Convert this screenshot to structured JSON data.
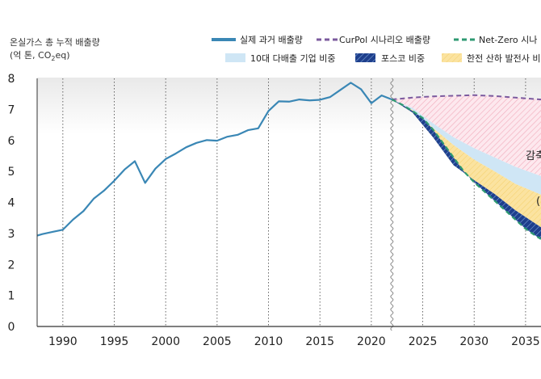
{
  "chart_data": {
    "type": "line",
    "ylabel_line1": "온실가스 총 누적 배출량",
    "ylabel_line2_pre": "(억 톤, CO",
    "ylabel_line2_sub": "2",
    "ylabel_line2_post": "eq)",
    "xlim": [
      1987.5,
      2036.5
    ],
    "ylim": [
      0,
      8
    ],
    "x_ticks": [
      1990,
      1995,
      2000,
      2005,
      2010,
      2015,
      2020,
      2025,
      2030,
      2035
    ],
    "x_tick_labels": [
      "1990",
      "1995",
      "2000",
      "2005",
      "2010",
      "2015",
      "2020",
      "2025",
      "2030",
      "2035"
    ],
    "y_ticks": [
      0,
      1,
      2,
      3,
      4,
      5,
      6,
      7,
      8
    ],
    "y_tick_labels": [
      "0",
      "1",
      "2",
      "3",
      "4",
      "5",
      "6",
      "7",
      "8"
    ],
    "legend": {
      "actual": "실제 과거 배출량",
      "curpol": "CurPol 시나리오 배출량",
      "netzero": "Net-Zero 시나",
      "top10": "10대 다배출 기업 비중",
      "posco": "포스코 비중",
      "kepco": "한전 산하 발전사 비"
    },
    "annotations": {
      "reduction_partial": "감축",
      "share_partial": "("
    },
    "series": [
      {
        "key": "actual",
        "x": [
          1987.5,
          1988,
          1989,
          1990,
          1991,
          1992,
          1993,
          1994,
          1995,
          1996,
          1997,
          1998,
          1999,
          2000,
          2001,
          2002,
          2003,
          2004,
          2005,
          2006,
          2007,
          2008,
          2009,
          2010,
          2011,
          2012,
          2013,
          2014,
          2015,
          2016,
          2017,
          2018,
          2019,
          2020,
          2021,
          2022
        ],
        "y": [
          2.93,
          2.98,
          3.05,
          3.12,
          3.45,
          3.72,
          4.12,
          4.38,
          4.7,
          5.06,
          5.33,
          4.63,
          5.09,
          5.4,
          5.58,
          5.78,
          5.92,
          6.01,
          5.99,
          6.12,
          6.18,
          6.33,
          6.39,
          6.95,
          7.26,
          7.25,
          7.32,
          7.29,
          7.31,
          7.4,
          7.63,
          7.86,
          7.65,
          7.2,
          7.45,
          7.32
        ]
      },
      {
        "key": "curpol",
        "x": [
          2022,
          2024,
          2026,
          2028,
          2030,
          2032,
          2034,
          2036.5
        ],
        "y": [
          7.32,
          7.38,
          7.42,
          7.44,
          7.46,
          7.43,
          7.38,
          7.32
        ]
      },
      {
        "key": "netzero",
        "x": [
          2022,
          2023,
          2024,
          2025,
          2026,
          2027,
          2028,
          2029,
          2030,
          2031,
          2032,
          2033,
          2034,
          2035,
          2036,
          2036.5
        ],
        "y": [
          7.32,
          7.15,
          6.95,
          6.72,
          6.35,
          5.9,
          5.45,
          5.0,
          4.65,
          4.35,
          4.05,
          3.75,
          3.45,
          3.15,
          2.92,
          2.82
        ]
      }
    ],
    "bands": {
      "x": [
        2022,
        2024,
        2026,
        2028,
        2030,
        2032,
        2034,
        2036.5
      ],
      "top10_upper": [
        7.32,
        7.05,
        6.55,
        6.1,
        5.75,
        5.45,
        5.15,
        4.85
      ],
      "kepco_upper": [
        7.32,
        6.98,
        6.4,
        5.85,
        5.38,
        5.0,
        4.6,
        4.25
      ],
      "posco_upper": [
        7.32,
        6.9,
        6.1,
        5.2,
        4.72,
        4.27,
        3.75,
        3.2
      ]
    },
    "colors": {
      "actual": "#3a87b5",
      "curpol": "#7b5a9e",
      "netzero": "#2e9a72",
      "top10": "#cfe6f5",
      "posco": "#1e3f8c",
      "kepco": "#fbe3a0",
      "gap_hatch": "#f2aebe",
      "grid": "#555555",
      "axis": "#333333"
    }
  }
}
